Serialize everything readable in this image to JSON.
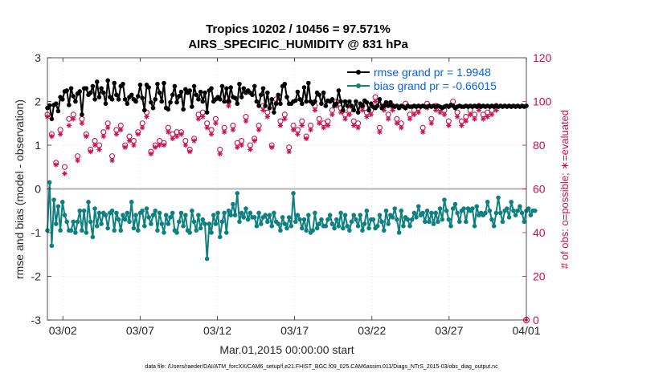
{
  "chart_data": {
    "type": "line",
    "title_line1": "Tropics 10202 / 10456 = 97.571%",
    "title_line2": "AIRS_SPECIFIC_HUMIDITY @ 831 hPa",
    "xlabel": "Mar.01,2015 00:00:00 start",
    "ylabel_left": "rmse and bias (model - observation)",
    "ylabel_right": "# of obs: o=possible; ∗=evaluated",
    "ylim_left": [
      -3,
      3
    ],
    "ylim_right": [
      0,
      120
    ],
    "xlim_days": [
      0,
      31
    ],
    "x_ticks": [
      {
        "day": 1,
        "label": "03/02"
      },
      {
        "day": 6,
        "label": "03/07"
      },
      {
        "day": 11,
        "label": "03/12"
      },
      {
        "day": 16,
        "label": "03/17"
      },
      {
        "day": 21,
        "label": "03/22"
      },
      {
        "day": 26,
        "label": "03/27"
      },
      {
        "day": 31,
        "label": "04/01"
      }
    ],
    "y_ticks_left": [
      "3",
      "2",
      "1",
      "0",
      "-1",
      "-2",
      "-3"
    ],
    "y_ticks_right": [
      "120",
      "100",
      "80",
      "60",
      "40",
      "20",
      "0"
    ],
    "footer": "data file: /Users/raeder/DAI/ATM_forcXX/CAM6_setup/f.e21.FHIST_BGC.f09_025.CAM6assim.011/Diags_NTrS_2015-03/obs_diag_output.nc",
    "colors": {
      "rmse": "#000000",
      "bias": "#0e8080",
      "obs": "#c8104f",
      "legend_text": "#0a5fe6",
      "zero_line": "#b4b4b4"
    },
    "series": [
      {
        "name": "rmse",
        "legend_label": "rmse grand pr = 1.9948",
        "values": [
          1.85,
          1.91,
          1.6,
          1.92,
          1.95,
          1.78,
          2.1,
          2.05,
          2.23,
          2.25,
          1.92,
          2.3,
          2.12,
          2.0,
          2.18,
          2.23,
          1.7,
          2.3,
          2.3,
          2.15,
          2.2,
          2.35,
          2.05,
          2.45,
          2.1,
          2.3,
          2.2,
          1.95,
          2.48,
          2.1,
          2.05,
          2.42,
          2.15,
          2.05,
          2.35,
          2.4,
          2.05,
          1.95,
          2.1,
          2.15,
          2.05,
          2.0,
          2.12,
          2.38,
          2.08,
          1.8,
          2.38,
          2.32,
          1.98,
          1.85,
          2.05,
          2.4,
          2.2,
          2.0,
          2.42,
          1.85,
          1.82,
          1.98,
          2.15,
          2.35,
          1.98,
          2.12,
          2.22,
          1.82,
          2.28,
          2.2,
          2.25,
          1.88,
          2.35,
          2.15,
          2.05,
          2.22,
          2.0,
          2.2,
          1.75,
          2.25,
          2.3,
          2.0,
          2.05,
          2.1,
          2.05,
          2.35,
          2.0,
          2.3,
          2.0,
          2.32,
          2.1,
          2.08,
          1.95,
          2.4,
          2.1,
          2.3,
          2.2,
          2.25,
          2.2,
          2.15,
          2.35,
          2.0,
          1.9,
          2.15,
          2.3,
          1.9,
          2.2,
          1.85,
          2.05,
          1.75,
          1.95,
          2.15,
          1.95,
          2.35,
          2.4,
          2.1,
          1.95,
          1.95,
          2.0,
          2.02,
          2.22,
          2.05,
          1.95,
          2.32,
          2.0,
          2.42,
          2.0,
          1.95,
          2.0,
          2.2,
          2.15,
          1.95,
          2.2,
          1.9,
          2.02,
          2.0,
          2.05,
          1.9,
          1.95,
          2.25,
          2.0,
          1.8,
          2.0,
          1.9,
          2.0,
          1.9,
          1.8,
          2.0,
          1.75,
          1.95,
          1.9,
          2.02,
          1.98,
          1.8,
          1.95,
          1.88,
          1.85,
          1.9,
          2.05,
          1.85,
          1.9,
          1.98,
          1.9,
          1.98,
          1.9,
          1.88,
          1.9,
          1.85,
          1.9,
          1.88,
          1.85,
          1.9,
          1.88,
          1.88,
          1.9,
          1.88,
          1.9,
          1.88,
          1.9,
          1.88,
          1.88,
          1.9,
          1.88,
          1.9,
          1.88,
          1.9,
          1.88,
          1.85,
          1.88,
          1.9,
          1.88,
          1.92,
          1.9,
          1.85,
          1.88,
          1.9,
          1.88,
          1.88,
          1.9,
          1.88,
          1.9,
          1.88,
          1.9,
          1.88,
          1.9,
          1.88,
          1.9,
          1.88,
          1.9,
          1.88,
          1.9,
          1.88,
          1.9,
          1.88,
          1.9,
          1.88,
          1.9,
          1.88,
          1.9,
          1.88,
          1.9,
          1.88,
          1.9,
          1.88,
          1.9,
          1.88,
          1.9
        ]
      },
      {
        "name": "bias",
        "legend_label": "bias grand pr = -0.66015",
        "values": [
          -0.95,
          0.15,
          -1.3,
          -0.25,
          -0.8,
          -0.4,
          -0.95,
          -0.3,
          -0.6,
          -0.75,
          -0.95,
          -0.95,
          -0.75,
          -1.0,
          -0.75,
          -0.5,
          -0.95,
          -0.5,
          -1.0,
          -0.3,
          -0.75,
          -1.1,
          -0.45,
          -0.85,
          -0.55,
          -0.8,
          -0.55,
          -0.6,
          -0.9,
          -0.55,
          -0.5,
          -0.95,
          -0.55,
          -0.7,
          -0.95,
          -0.6,
          -0.7,
          -0.55,
          -0.75,
          -0.3,
          -0.9,
          -0.6,
          -0.95,
          -0.55,
          -0.5,
          -0.85,
          -0.45,
          -0.65,
          -0.8,
          -0.6,
          -0.5,
          -0.95,
          -0.55,
          -0.8,
          -1.0,
          -0.6,
          -0.8,
          -0.65,
          -0.55,
          -0.95,
          -1.0,
          -0.75,
          -0.55,
          -0.85,
          -0.6,
          -0.95,
          -1.0,
          -0.5,
          -0.75,
          -0.95,
          -0.6,
          -0.9,
          -0.7,
          -0.8,
          -1.6,
          -0.8,
          -1.0,
          -0.6,
          -0.8,
          -0.55,
          -1.1,
          -0.75,
          -0.55,
          -1.0,
          -0.5,
          -0.6,
          -0.35,
          -0.6,
          -0.1,
          -0.75,
          -0.55,
          -0.65,
          -0.45,
          -0.7,
          -0.55,
          -0.65,
          -0.65,
          -0.85,
          -0.55,
          -0.8,
          -0.65,
          -0.6,
          -0.75,
          -0.6,
          -0.85,
          -0.55,
          -0.75,
          -0.8,
          -0.95,
          -0.65,
          -0.8,
          -0.9,
          -0.65,
          -0.85,
          -0.1,
          -0.75,
          -0.6,
          -0.7,
          -0.9,
          -0.7,
          -0.95,
          -0.6,
          -1.0,
          -0.95,
          -0.55,
          -0.9,
          -0.8,
          -0.7,
          -0.85,
          -0.85,
          -0.7,
          -0.6,
          -0.8,
          -0.9,
          -0.7,
          -0.85,
          -0.55,
          -0.9,
          -0.6,
          -0.85,
          -0.95,
          -0.75,
          -0.6,
          -0.7,
          -0.85,
          -0.6,
          -0.95,
          -0.8,
          -0.5,
          -0.9,
          -0.7,
          -0.7,
          -0.9,
          -0.85,
          -0.6,
          -0.75,
          -0.95,
          -0.5,
          -0.8,
          -0.6,
          -0.65,
          -0.45,
          -0.7,
          -1.0,
          -0.5,
          -0.85,
          -0.65,
          -0.7,
          -0.85,
          -0.7,
          -0.55,
          -0.65,
          -0.4,
          -0.6,
          -0.55,
          -0.75,
          -0.5,
          -0.75,
          -0.55,
          -0.8,
          -0.55,
          -0.75,
          -0.45,
          -0.7,
          -0.25,
          -0.5,
          -0.7,
          -0.85,
          -0.45,
          -0.35,
          -0.55,
          -0.75,
          -0.5,
          -0.45,
          -0.75,
          -0.45,
          -0.5,
          -0.45,
          -0.85,
          -0.4,
          -0.6,
          -0.55,
          -0.6,
          -0.55,
          -0.3,
          -0.5,
          -0.7,
          -0.85,
          -0.55,
          -0.2,
          -0.55,
          -0.75,
          -0.5,
          -0.45,
          -0.65,
          -0.3,
          -0.5,
          -0.6,
          -0.5,
          -0.4,
          -0.55,
          -0.75,
          -0.5,
          -0.45,
          -0.6,
          -0.5,
          -0.5
        ]
      },
      {
        "name": "obs_possible",
        "values": [
          94,
          95,
          85,
          91,
          72,
          88,
          87,
          70,
          70,
          89,
          92,
          75,
          94,
          78,
          75,
          85,
          92,
          80,
          85,
          87,
          78,
          91,
          82,
          92,
          80,
          85,
          86,
          82,
          90,
          79,
          75,
          93,
          87,
          78,
          89,
          82,
          80,
          84,
          84,
          75,
          82,
          95,
          86,
          82,
          90,
          89,
          95,
          78,
          77,
          89,
          80,
          85,
          82,
          83,
          81,
          76,
          88,
          82,
          85,
          92,
          86,
          85,
          86,
          88,
          82,
          85,
          78,
          92,
          83,
          89,
          94,
          81,
          95,
          88,
          90,
          80,
          87,
          84,
          92,
          89,
          78,
          91,
          88,
          93,
          100,
          90,
          89,
          94,
          81,
          92,
          82,
          97,
          93,
          96,
          80,
          87,
          83,
          94,
          89,
          92,
          98,
          104,
          95,
          110,
          80,
          82,
          101,
          93,
          91,
          98,
          94,
          85,
          79,
          93,
          89,
          94,
          87,
          75,
          91,
          87,
          84,
          93,
          89,
          94,
          98,
          86,
          92,
          88,
          90,
          86,
          91,
          94,
          96,
          92,
          100,
          97,
          97,
          89,
          94,
          93,
          96,
          99,
          91,
          95,
          90,
          96,
          98,
          87,
          95,
          100,
          96,
          92,
          102,
          95,
          88,
          101,
          98,
          96,
          94,
          100,
          98,
          93,
          92,
          102,
          90,
          98,
          99,
          95,
          94,
          92,
          96,
          98,
          97,
          97,
          88,
          93,
          99,
          99,
          92,
          96,
          98,
          92,
          97,
          89,
          96,
          98,
          91,
          98,
          100,
          97,
          95,
          99,
          91,
          96,
          93,
          99,
          96,
          95,
          94,
          98,
          98,
          102,
          94,
          96,
          95,
          99,
          96,
          92,
          98,
          96
        ]
      },
      {
        "name": "obs_evaluated",
        "values": [
          93,
          86,
          84,
          90,
          71,
          88,
          85,
          69,
          67,
          88,
          89,
          73,
          92,
          76,
          73,
          83,
          90,
          79,
          84,
          87,
          77,
          89,
          80,
          91,
          78,
          83,
          84,
          80,
          88,
          77,
          73,
          91,
          85,
          76,
          87,
          80,
          79,
          83,
          82,
          73,
          80,
          93,
          85,
          80,
          88,
          88,
          93,
          77,
          76,
          87,
          79,
          83,
          80,
          81,
          80,
          75,
          86,
          80,
          83,
          91,
          84,
          83,
          85,
          86,
          80,
          83,
          77,
          90,
          82,
          87,
          92,
          80,
          93,
          86,
          88,
          79,
          85,
          83,
          90,
          87,
          76,
          89,
          86,
          91,
          98,
          88,
          87,
          92,
          79,
          90,
          80,
          95,
          91,
          94,
          78,
          85,
          82,
          92,
          87,
          90,
          96,
          102,
          93,
          107,
          79,
          81,
          99,
          91,
          89,
          96,
          92,
          83,
          77,
          91,
          87,
          92,
          85,
          74,
          89,
          85,
          83,
          91,
          87,
          92,
          96,
          84,
          90,
          86,
          88,
          84,
          89,
          92,
          94,
          90,
          98,
          95,
          95,
          87,
          92,
          91,
          94,
          97,
          89,
          93,
          88,
          94,
          96,
          85,
          93,
          98,
          94,
          90,
          100,
          93,
          86,
          99,
          96,
          94,
          92,
          98,
          96,
          91,
          90,
          100,
          88,
          96,
          97,
          93,
          92,
          90,
          94,
          96,
          95,
          95,
          86,
          91,
          97,
          97,
          90,
          94,
          96,
          90,
          95,
          87,
          94,
          96,
          89,
          96,
          98,
          95,
          93,
          97,
          89,
          94,
          91,
          97,
          94,
          93,
          92,
          96,
          96,
          100,
          92,
          94,
          93,
          97,
          94,
          90,
          96,
          94
        ]
      }
    ]
  }
}
